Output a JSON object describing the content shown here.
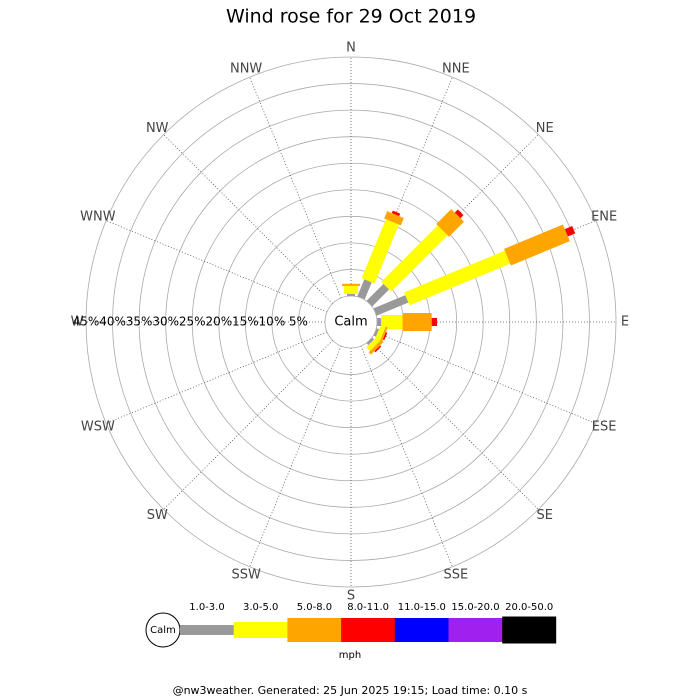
{
  "chart_data": {
    "type": "wind-rose",
    "title": "Wind rose for 29 Oct 2019",
    "directions": [
      "N",
      "NNE",
      "NE",
      "ENE",
      "E",
      "ESE",
      "SE",
      "SSE",
      "S",
      "SSW",
      "SW",
      "WSW",
      "W",
      "WNW",
      "NW",
      "NNW"
    ],
    "series": [
      {
        "name": "1.0-3.0",
        "color": "#999999",
        "values": [
          0.4,
          3.5,
          4.5,
          6.5,
          0.8,
          0.5,
          0.5,
          0,
          0,
          0,
          0,
          0,
          0,
          0,
          0,
          0
        ]
      },
      {
        "name": "3.0-5.0",
        "color": "#ffff00",
        "values": [
          1.5,
          12,
          15,
          20.5,
          4,
          1,
          1,
          0,
          0,
          0,
          0,
          0,
          0,
          0,
          0,
          0
        ]
      },
      {
        "name": "5.0-8.0",
        "color": "#ffa500",
        "values": [
          0.4,
          1.5,
          4,
          12,
          5.5,
          0.4,
          0.6,
          0,
          0,
          0,
          0,
          0,
          0,
          0,
          0,
          0
        ]
      },
      {
        "name": "8.0-11.0",
        "color": "#ff0000",
        "values": [
          0,
          0.5,
          0.8,
          1.5,
          1,
          0.3,
          0.3,
          0,
          0,
          0,
          0,
          0,
          0,
          0,
          0,
          0
        ]
      },
      {
        "name": "11.0-15.0",
        "color": "#0000ff",
        "values": [
          0,
          0,
          0,
          0,
          0,
          0,
          0,
          0,
          0,
          0,
          0,
          0,
          0,
          0,
          0,
          0
        ]
      },
      {
        "name": "15.0-20.0",
        "color": "#a020f0",
        "values": [
          0,
          0,
          0,
          0,
          0,
          0,
          0,
          0,
          0,
          0,
          0,
          0,
          0,
          0,
          0,
          0
        ]
      },
      {
        "name": "20.0-50.0",
        "color": "#000000",
        "values": [
          0,
          0,
          0,
          0,
          0,
          0,
          0,
          0,
          0,
          0,
          0,
          0,
          0,
          0,
          0,
          0
        ]
      }
    ],
    "rlim": [
      0,
      45
    ],
    "rticks": [
      {
        "value": 5,
        "label": "5%"
      },
      {
        "value": 10,
        "label": "10%"
      },
      {
        "value": 15,
        "label": "15%"
      },
      {
        "value": 20,
        "label": "20%"
      },
      {
        "value": 25,
        "label": "25%"
      },
      {
        "value": 30,
        "label": "30%"
      },
      {
        "value": 35,
        "label": "35%"
      },
      {
        "value": 40,
        "label": "40%"
      },
      {
        "value": 45,
        "label": "45%"
      }
    ],
    "calm_label": "Calm",
    "legend_unit": "mph",
    "footer": "@nw3weather. Generated: 25 Jun 2025 19:15; Load time: 0.10 s"
  }
}
